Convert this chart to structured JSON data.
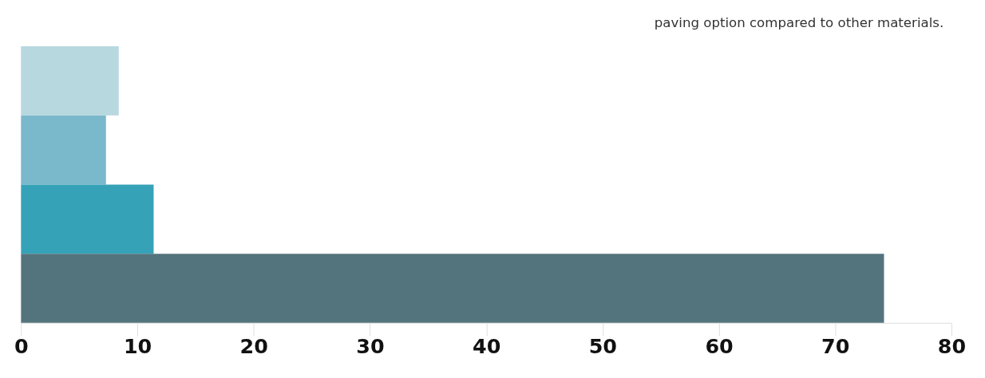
{
  "chart_data": {
    "type": "bar",
    "orientation": "horizontal",
    "categories": [
      null,
      null,
      null,
      null
    ],
    "values": [
      8.4,
      7.3,
      11.4,
      74.2
    ],
    "colors": [
      "#b8d8e0",
      "#7ab8cc",
      "#36a2b8",
      "#53747c"
    ],
    "xlim": [
      0,
      80
    ],
    "xticks": [
      0,
      10,
      20,
      30,
      40,
      50,
      60,
      70,
      80
    ],
    "grid": false,
    "annotations": [
      "paving option compared to other materials."
    ]
  }
}
